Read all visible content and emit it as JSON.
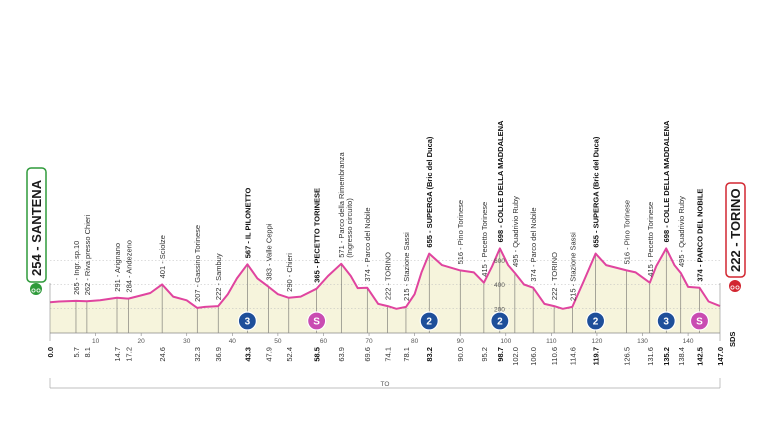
{
  "chart_data": {
    "type": "area",
    "xlabel": "",
    "ylabel": "",
    "xlim": [
      0,
      147
    ],
    "ylim": [
      0,
      800
    ],
    "y_ticks": [
      200,
      400,
      600
    ],
    "x_ticks": [
      10,
      20,
      30,
      40,
      50,
      60,
      70,
      80,
      90,
      100,
      110,
      120,
      130,
      140
    ],
    "start": {
      "label": "254 - SANTENA",
      "km": 0,
      "alt": 254
    },
    "finish": {
      "label": "222 - TORINO",
      "km": 147,
      "alt": 222
    },
    "series": [
      {
        "values": [
          [
            0,
            254
          ],
          [
            2,
            260
          ],
          [
            5.7,
            265
          ],
          [
            8.1,
            262
          ],
          [
            11,
            270
          ],
          [
            14.7,
            291
          ],
          [
            17.2,
            284
          ],
          [
            20,
            310
          ],
          [
            22,
            330
          ],
          [
            24.6,
            401
          ],
          [
            27,
            300
          ],
          [
            30,
            270
          ],
          [
            32.3,
            207
          ],
          [
            34,
            215
          ],
          [
            36.9,
            222
          ],
          [
            39,
            320
          ],
          [
            41,
            450
          ],
          [
            43.3,
            567
          ],
          [
            45.5,
            450
          ],
          [
            47.9,
            383
          ],
          [
            50,
            320
          ],
          [
            52.4,
            290
          ],
          [
            55,
            300
          ],
          [
            58.5,
            365
          ],
          [
            61,
            470
          ],
          [
            63.9,
            571
          ],
          [
            66,
            470
          ],
          [
            67.5,
            370
          ],
          [
            69.6,
            374
          ],
          [
            72,
            240
          ],
          [
            74.1,
            222
          ],
          [
            76,
            200
          ],
          [
            78.1,
            215
          ],
          [
            80,
            320
          ],
          [
            81.5,
            500
          ],
          [
            83.2,
            655
          ],
          [
            86,
            560
          ],
          [
            90,
            516
          ],
          [
            93,
            500
          ],
          [
            95.2,
            415
          ],
          [
            97,
            550
          ],
          [
            98.7,
            698
          ],
          [
            100.5,
            560
          ],
          [
            102,
            495
          ],
          [
            104,
            400
          ],
          [
            106,
            374
          ],
          [
            108.5,
            240
          ],
          [
            110.6,
            222
          ],
          [
            112.5,
            200
          ],
          [
            114.6,
            215
          ],
          [
            117,
            420
          ],
          [
            119.7,
            655
          ],
          [
            122,
            560
          ],
          [
            126.5,
            516
          ],
          [
            128.5,
            500
          ],
          [
            131.6,
            415
          ],
          [
            133,
            550
          ],
          [
            135.2,
            698
          ],
          [
            137,
            560
          ],
          [
            138.4,
            495
          ],
          [
            140,
            380
          ],
          [
            142.5,
            374
          ],
          [
            144.5,
            260
          ],
          [
            147,
            222
          ]
        ]
      }
    ],
    "distance_labels": [
      "0.0",
      "5.7",
      "8.1",
      "14.7",
      "17.2",
      "24.6",
      "32.3",
      "36.9",
      "43.3",
      "47.9",
      "52.4",
      "58.5",
      "63.9",
      "69.6",
      "74.1",
      "78.1",
      "83.2",
      "90.0",
      "95.2",
      "98.7",
      "102.0",
      "106.0",
      "110.6",
      "114.6",
      "119.7",
      "126.5",
      "131.6",
      "135.2",
      "138.4",
      "142.5",
      "147.0"
    ],
    "landmarks": [
      {
        "km": 5.7,
        "text": "265 - Ingr. sp.10",
        "bold": false
      },
      {
        "km": 8.1,
        "text": "262 - Riva presso Chieri",
        "bold": false
      },
      {
        "km": 14.7,
        "text": "291 - Arignano",
        "bold": false
      },
      {
        "km": 17.2,
        "text": "284 - Andezeno",
        "bold": false
      },
      {
        "km": 24.6,
        "text": "401 - Sciolze",
        "bold": false
      },
      {
        "km": 32.3,
        "text": "207 - Gassino Torinese",
        "bold": false
      },
      {
        "km": 36.9,
        "text": "222 - Sambuy",
        "bold": false
      },
      {
        "km": 43.3,
        "text": "567 - IL PILONETTO",
        "bold": true
      },
      {
        "km": 47.9,
        "text": "383 - Valle Ceppi",
        "bold": false
      },
      {
        "km": 52.4,
        "text": "290 - Chieri",
        "bold": false
      },
      {
        "km": 58.5,
        "text": "365 - PECETTO TORINESE",
        "bold": true
      },
      {
        "km": 63.9,
        "text": "571 - Parco della Rimembranza",
        "text2": "(Ingresso circuito)",
        "bold": false
      },
      {
        "km": 69.6,
        "text": "374 - Parco del Nobile",
        "bold": false
      },
      {
        "km": 74.1,
        "text": "222 - TORINO",
        "bold": false
      },
      {
        "km": 78.1,
        "text": "215 - Stazione Sassi",
        "bold": false
      },
      {
        "km": 83.2,
        "text": "655 - SUPERGA (Bric del Duca)",
        "bold": true
      },
      {
        "km": 90.0,
        "text": "516 - Pino Torinese",
        "bold": false
      },
      {
        "km": 95.2,
        "text": "415 - Pecetto Torinese",
        "bold": false
      },
      {
        "km": 98.7,
        "text": "698 - COLLE DELLA MADDALENA",
        "bold": true
      },
      {
        "km": 102.0,
        "text": "495 - Quadrivio Ruby",
        "bold": false
      },
      {
        "km": 106.0,
        "text": "374 - Parco del Nobile",
        "bold": false
      },
      {
        "km": 110.6,
        "text": "222 - TORINO",
        "bold": false
      },
      {
        "km": 114.6,
        "text": "215 - Stazione Sassi",
        "bold": false
      },
      {
        "km": 119.7,
        "text": "655 - SUPERGA (Bric del Duca)",
        "bold": true
      },
      {
        "km": 126.5,
        "text": "516 - Pino Torinese",
        "bold": false
      },
      {
        "km": 131.6,
        "text": "415 - Pecetto Torinese",
        "bold": false
      },
      {
        "km": 135.2,
        "text": "698 - COLLE DELLA MADDALENA",
        "bold": true
      },
      {
        "km": 138.4,
        "text": "495 - Quadrivio Ruby",
        "bold": false
      },
      {
        "km": 142.5,
        "text": "374 - PARCO DEL NOBILE",
        "bold": true
      }
    ],
    "categories_badges": [
      {
        "km": 43.3,
        "label": "3",
        "type": "gpm"
      },
      {
        "km": 58.5,
        "label": "S",
        "type": "sprint"
      },
      {
        "km": 83.2,
        "label": "2",
        "type": "gpm"
      },
      {
        "km": 98.7,
        "label": "2",
        "type": "gpm"
      },
      {
        "km": 119.7,
        "label": "2",
        "type": "gpm"
      },
      {
        "km": 135.2,
        "label": "3",
        "type": "gpm"
      },
      {
        "km": 142.5,
        "label": "S",
        "type": "sprint"
      }
    ],
    "bold_distances": [
      "0.0",
      "43.3",
      "58.5",
      "83.2",
      "98.7",
      "119.7",
      "135.2",
      "142.5",
      "147.0"
    ],
    "sds_label": "SDS",
    "bottom_label": "TO",
    "colors": {
      "profile": "#e0449f",
      "fill": "#f6f4dc",
      "gpm": "#1e4f9a",
      "sprint": "#c94cb2",
      "start": "#2e9a3a",
      "finish": "#d22630"
    }
  }
}
